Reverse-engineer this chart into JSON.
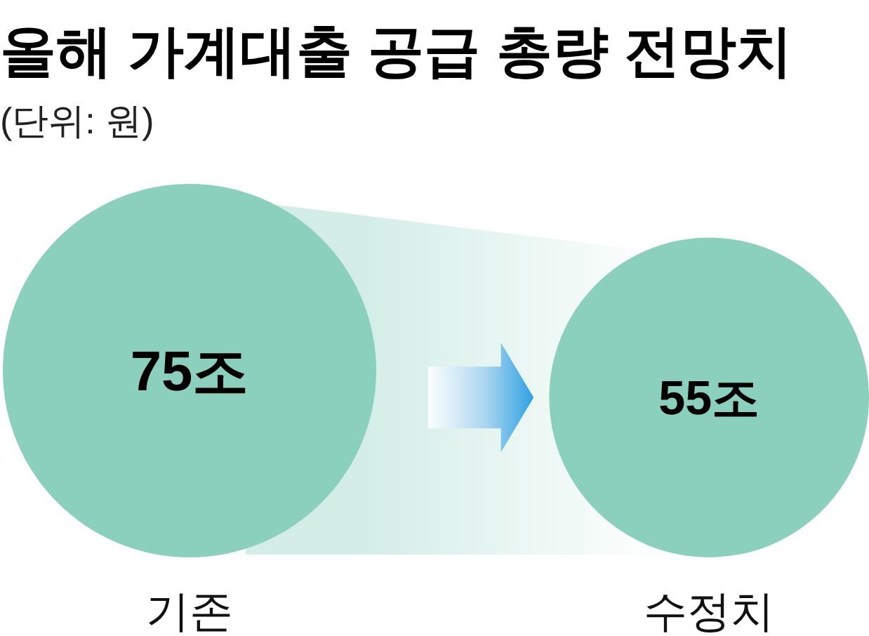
{
  "chart_data": {
    "type": "other",
    "title": "올해 가계대출 공급 총량 전망치",
    "subtitle": "(단위: 원)",
    "categories": [
      "기존",
      "수정치"
    ],
    "values": [
      75,
      55
    ],
    "value_labels": [
      "75조",
      "55조"
    ],
    "colors": [
      "#8bd0bd",
      "#8bd0bd"
    ]
  }
}
